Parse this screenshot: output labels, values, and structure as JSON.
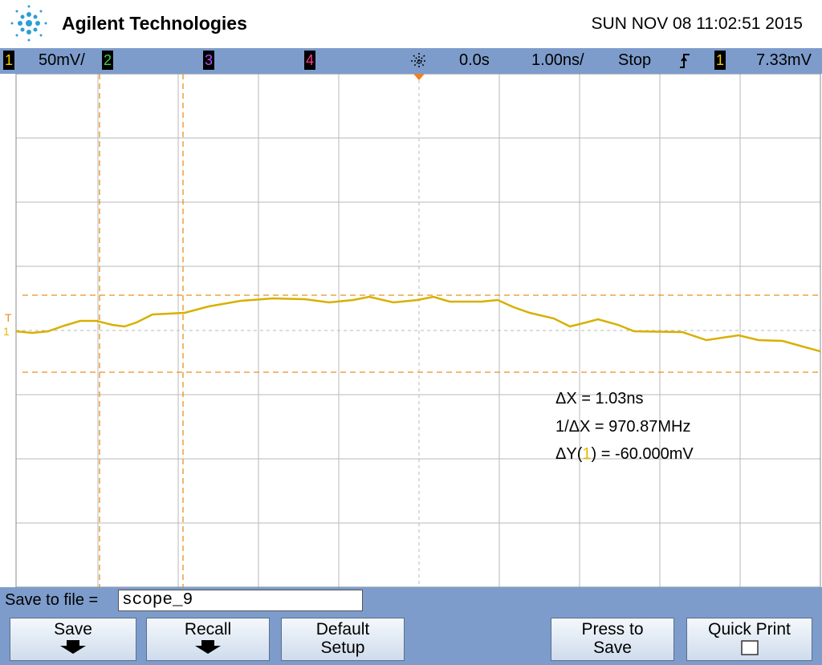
{
  "header": {
    "brand": "Agilent Technologies",
    "datetime": "SUN NOV 08 11:02:51 2015"
  },
  "status_bar": {
    "ch1": "1",
    "ch1_scale": "50mV/",
    "ch2": "2",
    "ch3": "3",
    "ch4": "4",
    "delay": "0.0s",
    "timebase": "1.00ns/",
    "run_state": "Stop",
    "trigger_source": "1",
    "trigger_level": "7.33mV"
  },
  "screen": {
    "trigger_marker": "T",
    "channel_marker": "1"
  },
  "measurements": {
    "delta_x": "ΔX = 1.03ns",
    "inverse_delta_x": "1/ΔX = 970.87MHz",
    "delta_y_prefix": "ΔY(",
    "delta_y_channel": "1",
    "delta_y_suffix": ") = -60.000mV"
  },
  "save_bar": {
    "label": "Save to file =",
    "filename": "scope_9"
  },
  "softkeys": [
    {
      "line1": "Save"
    },
    {
      "line1": "Recall"
    },
    {
      "line1": "Default",
      "line2": "Setup"
    },
    {
      "line1": "Press to",
      "line2": "Save"
    },
    {
      "line1": "Quick Print"
    }
  ]
}
